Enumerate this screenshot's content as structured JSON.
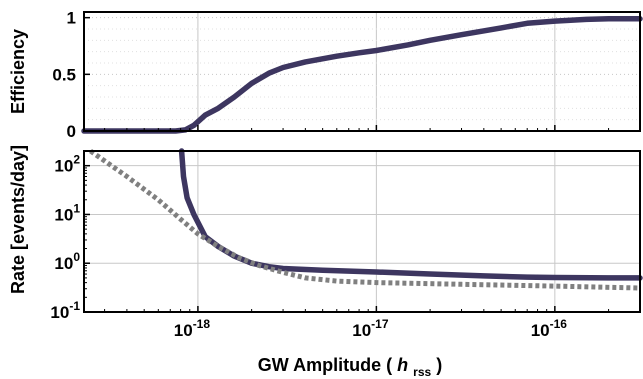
{
  "chart_data": [
    {
      "type": "line",
      "title": "",
      "xlabel": "GW Amplitude",
      "xlabel_symbol": "h",
      "xlabel_subscript": "rss",
      "ylabel": "Efficiency",
      "xscale": "log",
      "xlim": [
        2.3e-19,
        3e-16
      ],
      "ylim": [
        0,
        1.05
      ],
      "yticks": [
        0,
        0.5,
        1
      ],
      "ytick_labels": [
        "0",
        "0.5",
        "1"
      ],
      "grid": true,
      "series": [
        {
          "color": "#3d3660",
          "style": "solid",
          "points": [
            [
              2.3e-19,
              0
            ],
            [
              7.5e-19,
              0
            ],
            [
              8.5e-19,
              0.01
            ],
            [
              9.5e-19,
              0.05
            ],
            [
              1.1e-18,
              0.14
            ],
            [
              1.3e-18,
              0.2
            ],
            [
              1.6e-18,
              0.3
            ],
            [
              2e-18,
              0.42
            ],
            [
              2.5e-18,
              0.51
            ],
            [
              3e-18,
              0.56
            ],
            [
              4e-18,
              0.61
            ],
            [
              6e-18,
              0.66
            ],
            [
              8e-18,
              0.69
            ],
            [
              1e-17,
              0.71
            ],
            [
              1.5e-17,
              0.76
            ],
            [
              2e-17,
              0.8
            ],
            [
              3e-17,
              0.85
            ],
            [
              5e-17,
              0.91
            ],
            [
              7e-17,
              0.95
            ],
            [
              1e-16,
              0.97
            ],
            [
              1.5e-16,
              0.985
            ],
            [
              2e-16,
              0.99
            ],
            [
              3e-16,
              0.99
            ]
          ]
        }
      ]
    },
    {
      "type": "line",
      "title": "",
      "xlabel": "GW Amplitude",
      "ylabel": "Rate [events/day]",
      "xscale": "log",
      "yscale": "log",
      "xlim": [
        2.3e-19,
        3e-16
      ],
      "ylim": [
        0.1,
        200
      ],
      "xticks": [
        1e-18,
        1e-17,
        1e-16
      ],
      "xtick_labels": [
        {
          "base": "10",
          "exp": "-18"
        },
        {
          "base": "10",
          "exp": "-17"
        },
        {
          "base": "10",
          "exp": "-16"
        }
      ],
      "yticks": [
        0.1,
        1,
        10,
        100
      ],
      "ytick_labels": [
        {
          "base": "10",
          "exp": "-1"
        },
        {
          "base": "10",
          "exp": "0"
        },
        {
          "base": "10",
          "exp": "1"
        },
        {
          "base": "10",
          "exp": "2"
        }
      ],
      "grid": true,
      "series": [
        {
          "color": "#3d3660",
          "style": "solid",
          "points": [
            [
              8.1e-19,
              200
            ],
            [
              8.3e-19,
              60
            ],
            [
              8.7e-19,
              22
            ],
            [
              9.5e-19,
              10
            ],
            [
              1.1e-18,
              3.5
            ],
            [
              1.3e-18,
              2.2
            ],
            [
              1.6e-18,
              1.4
            ],
            [
              2e-18,
              1
            ],
            [
              2.5e-18,
              0.85
            ],
            [
              3e-18,
              0.78
            ],
            [
              5e-18,
              0.72
            ],
            [
              1e-17,
              0.66
            ],
            [
              2e-17,
              0.6
            ],
            [
              4e-17,
              0.55
            ],
            [
              7e-17,
              0.52
            ],
            [
              1e-16,
              0.51
            ],
            [
              2e-16,
              0.5
            ],
            [
              3e-16,
              0.5
            ]
          ]
        },
        {
          "color": "#808080",
          "style": "dotted",
          "points": [
            [
              2.5e-19,
              200
            ],
            [
              4e-19,
              60
            ],
            [
              6e-19,
              20
            ],
            [
              8e-19,
              8
            ],
            [
              1e-18,
              4
            ],
            [
              1.3e-18,
              2.2
            ],
            [
              1.7e-18,
              1.3
            ],
            [
              2.2e-18,
              0.9
            ],
            [
              3e-18,
              0.65
            ],
            [
              4e-18,
              0.5
            ],
            [
              6e-18,
              0.43
            ],
            [
              1e-17,
              0.4
            ],
            [
              3e-17,
              0.37
            ],
            [
              1e-16,
              0.34
            ],
            [
              3e-16,
              0.31
            ]
          ]
        }
      ]
    }
  ]
}
